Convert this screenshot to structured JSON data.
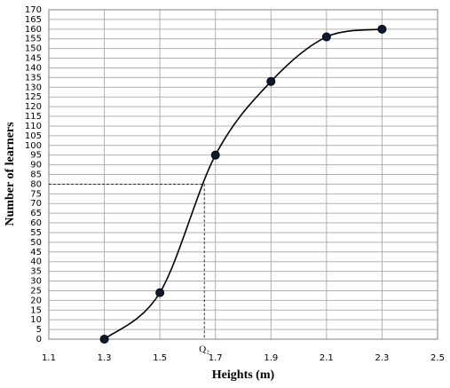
{
  "chart_data": {
    "type": "line",
    "x_label": "Heights (m)",
    "y_label": "Number of learners",
    "x": [
      1.3,
      1.5,
      1.7,
      1.9,
      2.1,
      2.3
    ],
    "values": [
      0,
      24,
      95,
      133,
      156,
      160
    ],
    "color": "#000000",
    "xlim": [
      1.1,
      2.5
    ],
    "xticks": [
      1.1,
      1.3,
      1.5,
      1.7,
      1.9,
      2.1,
      2.3,
      2.5
    ],
    "ylim": [
      0,
      170
    ],
    "yticks": [
      0,
      5,
      10,
      15,
      20,
      25,
      30,
      35,
      40,
      45,
      50,
      55,
      60,
      65,
      70,
      75,
      80,
      85,
      90,
      95,
      100,
      105,
      110,
      115,
      120,
      125,
      130,
      135,
      140,
      145,
      150,
      155,
      160,
      165,
      170
    ],
    "grid": true,
    "annotation": {
      "label": "Q₂",
      "x": 1.66,
      "y": 80
    }
  }
}
